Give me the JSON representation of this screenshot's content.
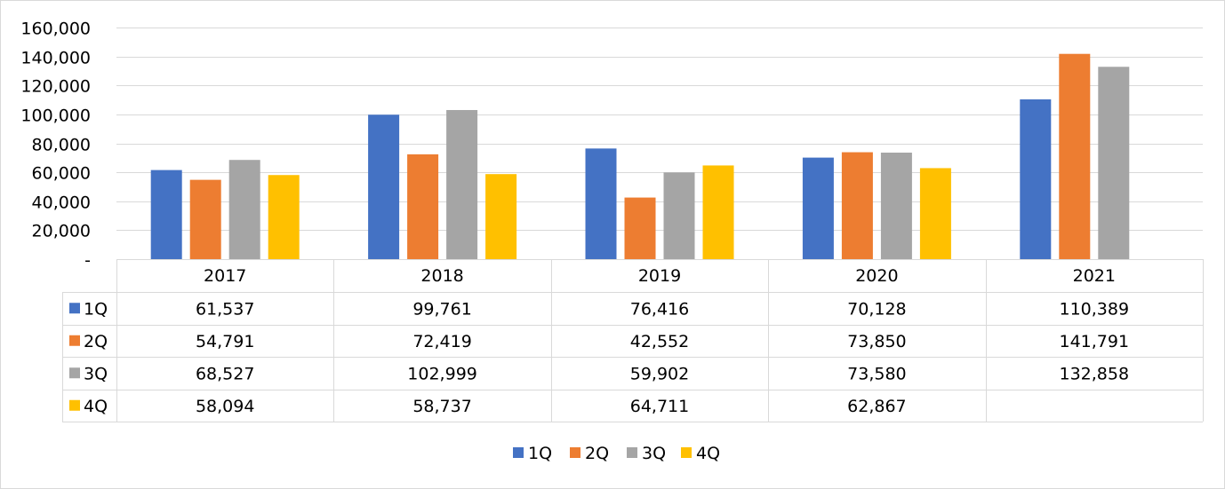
{
  "chart_data": {
    "type": "bar",
    "categories": [
      "2017",
      "2018",
      "2019",
      "2020",
      "2021"
    ],
    "series": [
      {
        "name": "1Q",
        "color": "#4472C4",
        "values": [
          61537,
          99761,
          76416,
          70128,
          110389
        ],
        "labels": [
          "61,537",
          "99,761",
          "76,416",
          "70,128",
          "110,389"
        ]
      },
      {
        "name": "2Q",
        "color": "#ED7D31",
        "values": [
          54791,
          72419,
          42552,
          73850,
          141791
        ],
        "labels": [
          "54,791",
          "72,419",
          "42,552",
          "73,850",
          "141,791"
        ]
      },
      {
        "name": "3Q",
        "color": "#A5A5A5",
        "values": [
          68527,
          102999,
          59902,
          73580,
          132858
        ],
        "labels": [
          "68,527",
          "102,999",
          "59,902",
          "73,580",
          "132,858"
        ]
      },
      {
        "name": "4Q",
        "color": "#FFC000",
        "values": [
          58094,
          58737,
          64711,
          62867,
          null
        ],
        "labels": [
          "58,094",
          "58,737",
          "64,711",
          "62,867",
          ""
        ]
      }
    ],
    "y_ticks": [
      {
        "value": 0,
        "label": "-"
      },
      {
        "value": 20000,
        "label": "20,000"
      },
      {
        "value": 40000,
        "label": "40,000"
      },
      {
        "value": 60000,
        "label": "60,000"
      },
      {
        "value": 80000,
        "label": "80,000"
      },
      {
        "value": 100000,
        "label": "100,000"
      },
      {
        "value": 120000,
        "label": "120,000"
      },
      {
        "value": 140000,
        "label": "140,000"
      },
      {
        "value": 160000,
        "label": "160,000"
      }
    ],
    "ylim": [
      0,
      160000
    ],
    "grid": true,
    "data_table": true,
    "legend": [
      "1Q",
      "2Q",
      "3Q",
      "4Q"
    ],
    "legend_position": "bottom",
    "title": "",
    "xlabel": "",
    "ylabel": ""
  }
}
